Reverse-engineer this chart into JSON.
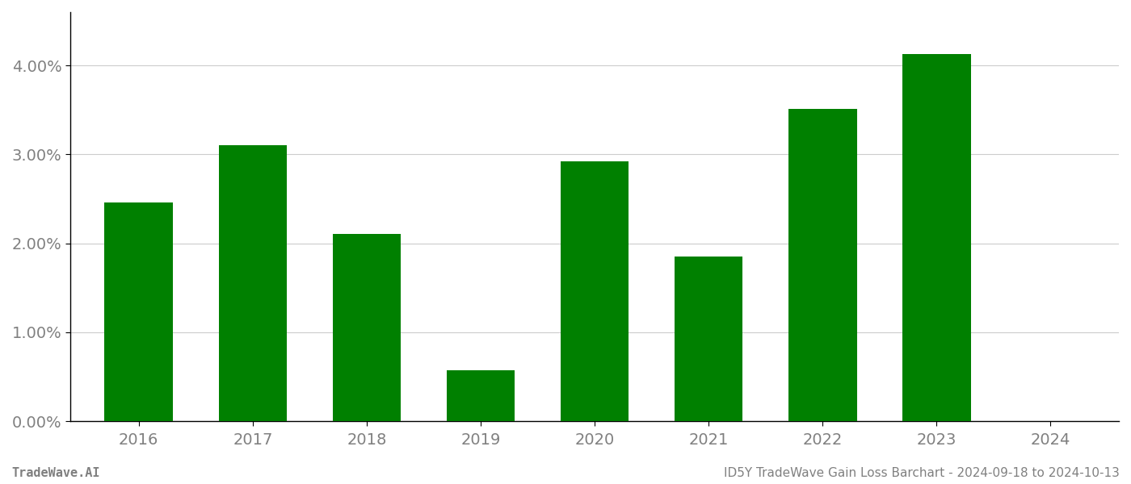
{
  "categories": [
    "2016",
    "2017",
    "2018",
    "2019",
    "2020",
    "2021",
    "2022",
    "2023",
    "2024"
  ],
  "values": [
    0.0246,
    0.031,
    0.0211,
    0.0057,
    0.0292,
    0.0185,
    0.0351,
    0.0413,
    0.0
  ],
  "bar_color": "#008000",
  "background_color": "#ffffff",
  "ylim": [
    0,
    0.046
  ],
  "yticks": [
    0.0,
    0.01,
    0.02,
    0.03,
    0.04
  ],
  "footer_left": "TradeWave.AI",
  "footer_right": "ID5Y TradeWave Gain Loss Barchart - 2024-09-18 to 2024-10-13",
  "grid_color": "#cccccc",
  "text_color": "#808080",
  "spine_color": "#000000",
  "figsize": [
    14.0,
    6.0
  ],
  "dpi": 100,
  "bar_width": 0.6,
  "xtick_fontsize": 14,
  "ytick_fontsize": 14,
  "footer_fontsize": 11
}
